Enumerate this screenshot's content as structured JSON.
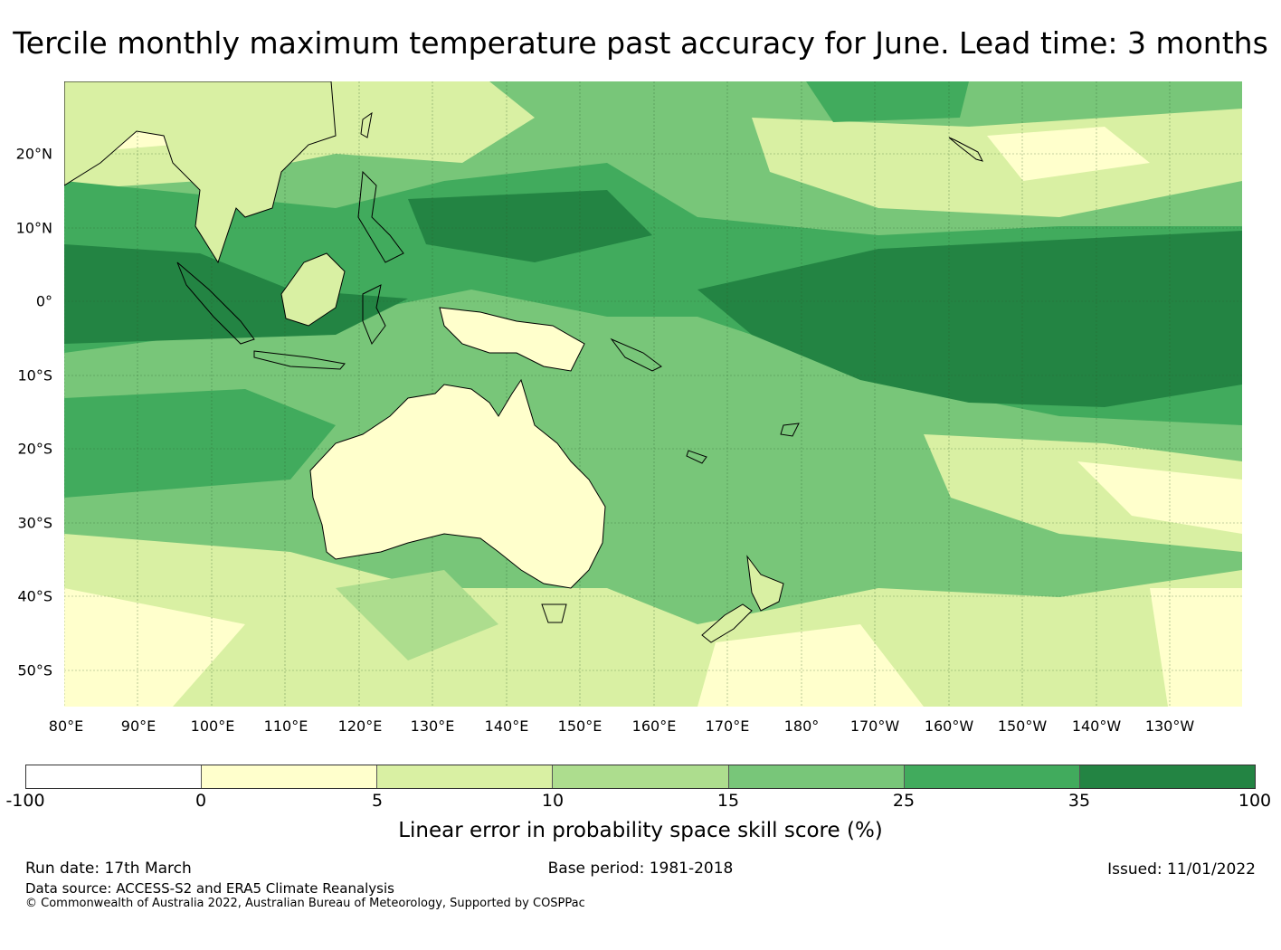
{
  "title": "Tercile monthly maximum temperature past accuracy for June. Lead time: 3 months",
  "map": {
    "lat_labels": [
      "20°N",
      "10°N",
      "0°",
      "10°S",
      "20°S",
      "30°S",
      "40°S",
      "50°S"
    ],
    "lon_labels": [
      "80°E",
      "90°E",
      "100°E",
      "110°E",
      "120°E",
      "130°E",
      "140°E",
      "150°E",
      "160°E",
      "170°E",
      "180°",
      "170°W",
      "160°W",
      "150°W",
      "140°W",
      "130°W"
    ]
  },
  "colorbar": {
    "title": "Linear error in probability space skill score (%)",
    "ticks": [
      "-100",
      "0",
      "5",
      "10",
      "15",
      "25",
      "35",
      "100"
    ],
    "colors": [
      "#ffffff",
      "#ffffcc",
      "#d9f0a3",
      "#addd8e",
      "#78c679",
      "#41ab5d",
      "#238443"
    ]
  },
  "footer": {
    "run_date": "Run date: 17th March",
    "data_source": "Data source: ACCESS-S2 and ERA5 Climate Reanalysis",
    "copyright": "© Commonwealth of Australia 2022, Australian Bureau of Meteorology, Supported by COSPPac",
    "base_period": "Base period: 1981-2018",
    "issued": "Issued: 11/01/2022"
  }
}
